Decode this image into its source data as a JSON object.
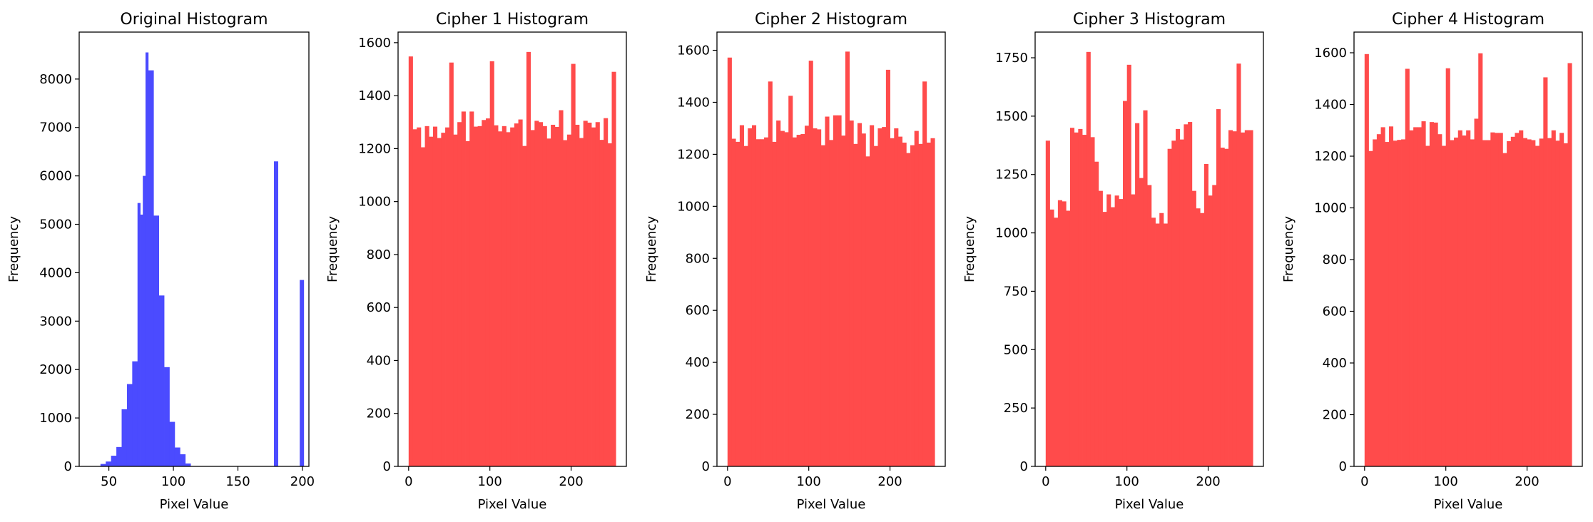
{
  "chart_data": [
    {
      "type": "bar",
      "title": "Original Histogram",
      "xlabel": "Pixel Value",
      "ylabel": "Frequency",
      "xlim": [
        27,
        205
      ],
      "ylim": [
        0,
        8970
      ],
      "xticks": [
        50,
        100,
        150,
        200
      ],
      "yticks": [
        0,
        1000,
        2000,
        3000,
        4000,
        5000,
        6000,
        7000,
        8000
      ],
      "color": "#4b4bff",
      "bins": [
        {
          "x0": 43.5,
          "x1": 47.6,
          "value": 50
        },
        {
          "x0": 47.6,
          "x1": 51.7,
          "value": 100
        },
        {
          "x0": 51.7,
          "x1": 55.8,
          "value": 220
        },
        {
          "x0": 55.8,
          "x1": 59.9,
          "value": 400
        },
        {
          "x0": 59.9,
          "x1": 64.0,
          "value": 1180
        },
        {
          "x0": 64.0,
          "x1": 68.1,
          "value": 1700
        },
        {
          "x0": 68.1,
          "x1": 72.2,
          "value": 2170
        },
        {
          "x0": 72.2,
          "x1": 74.3,
          "value": 5440
        },
        {
          "x0": 74.3,
          "x1": 76.3,
          "value": 5200
        },
        {
          "x0": 76.3,
          "x1": 78.4,
          "value": 6000
        },
        {
          "x0": 78.4,
          "x1": 80.5,
          "value": 8550
        },
        {
          "x0": 80.5,
          "x1": 84.6,
          "value": 8180
        },
        {
          "x0": 84.6,
          "x1": 88.7,
          "value": 5180
        },
        {
          "x0": 88.7,
          "x1": 92.8,
          "value": 3530
        },
        {
          "x0": 92.8,
          "x1": 96.9,
          "value": 2050
        },
        {
          "x0": 96.9,
          "x1": 101.0,
          "value": 920
        },
        {
          "x0": 101.0,
          "x1": 105.1,
          "value": 390
        },
        {
          "x0": 105.1,
          "x1": 109.2,
          "value": 250
        },
        {
          "x0": 109.2,
          "x1": 113.3,
          "value": 60
        },
        {
          "x0": 177.9,
          "x1": 181.0,
          "value": 6300
        },
        {
          "x0": 197.9,
          "x1": 201.0,
          "value": 3850
        }
      ]
    },
    {
      "type": "bar",
      "title": "Cipher 1 Histogram",
      "xlabel": "Pixel Value",
      "ylabel": "Frequency",
      "xlim": [
        -13,
        268
      ],
      "ylim": [
        0,
        1640
      ],
      "xticks": [
        0,
        100,
        200
      ],
      "yticks": [
        0,
        200,
        400,
        600,
        800,
        1000,
        1200,
        1400,
        1600
      ],
      "color": "#ff4b4b",
      "bin_start": 0,
      "bin_end": 255,
      "values": [
        1548,
        1273,
        1280,
        1205,
        1285,
        1245,
        1283,
        1240,
        1260,
        1280,
        1525,
        1253,
        1300,
        1340,
        1228,
        1340,
        1283,
        1285,
        1308,
        1314,
        1530,
        1288,
        1265,
        1285,
        1262,
        1280,
        1295,
        1310,
        1210,
        1565,
        1270,
        1305,
        1300,
        1285,
        1238,
        1290,
        1282,
        1345,
        1232,
        1253,
        1520,
        1290,
        1240,
        1305,
        1298,
        1280,
        1300,
        1233,
        1315,
        1220,
        1490
      ]
    },
    {
      "type": "bar",
      "title": "Cipher 2 Histogram",
      "xlabel": "Pixel Value",
      "ylabel": "Frequency",
      "xlim": [
        -13,
        268
      ],
      "ylim": [
        0,
        1670
      ],
      "xticks": [
        0,
        100,
        200
      ],
      "yticks": [
        0,
        200,
        400,
        600,
        800,
        1000,
        1200,
        1400,
        1600
      ],
      "color": "#ff4b4b",
      "bin_start": 0,
      "bin_end": 255,
      "values": [
        1572,
        1260,
        1248,
        1312,
        1232,
        1300,
        1312,
        1258,
        1258,
        1265,
        1480,
        1248,
        1330,
        1290,
        1285,
        1425,
        1265,
        1275,
        1278,
        1310,
        1560,
        1300,
        1296,
        1235,
        1345,
        1255,
        1350,
        1350,
        1272,
        1595,
        1330,
        1240,
        1320,
        1280,
        1192,
        1312,
        1232,
        1300,
        1305,
        1525,
        1262,
        1300,
        1268,
        1245,
        1205,
        1235,
        1290,
        1240,
        1480,
        1245,
        1262
      ]
    },
    {
      "type": "bar",
      "title": "Cipher 3 Histogram",
      "xlabel": "Pixel Value",
      "ylabel": "Frequency",
      "xlim": [
        -13,
        268
      ],
      "ylim": [
        0,
        1860
      ],
      "xticks": [
        0,
        100,
        200
      ],
      "yticks": [
        0,
        250,
        500,
        750,
        1000,
        1250,
        1500,
        1750
      ],
      "color": "#ff4b4b",
      "bin_start": 0,
      "bin_end": 255,
      "values": [
        1395,
        1100,
        1065,
        1140,
        1135,
        1095,
        1450,
        1430,
        1445,
        1420,
        1775,
        1410,
        1305,
        1180,
        1090,
        1165,
        1110,
        1160,
        1145,
        1565,
        1720,
        1165,
        1470,
        1235,
        1525,
        1205,
        1065,
        1040,
        1085,
        1040,
        1360,
        1395,
        1445,
        1400,
        1465,
        1475,
        1180,
        1105,
        1085,
        1295,
        1160,
        1205,
        1530,
        1365,
        1360,
        1440,
        1435,
        1725,
        1430,
        1440,
        1440
      ]
    },
    {
      "type": "bar",
      "title": "Cipher 4 Histogram",
      "xlabel": "Pixel Value",
      "ylabel": "Frequency",
      "xlim": [
        -13,
        268
      ],
      "ylim": [
        0,
        1680
      ],
      "xticks": [
        0,
        100,
        200
      ],
      "yticks": [
        0,
        200,
        400,
        600,
        800,
        1000,
        1200,
        1400,
        1600
      ],
      "color": "#ff4b4b",
      "bin_start": 0,
      "bin_end": 255,
      "values": [
        1595,
        1220,
        1265,
        1285,
        1312,
        1255,
        1315,
        1260,
        1263,
        1265,
        1538,
        1300,
        1312,
        1312,
        1335,
        1240,
        1332,
        1330,
        1285,
        1240,
        1540,
        1262,
        1272,
        1300,
        1280,
        1300,
        1265,
        1345,
        1598,
        1262,
        1262,
        1292,
        1290,
        1290,
        1212,
        1258,
        1275,
        1290,
        1300,
        1270,
        1265,
        1262,
        1240,
        1268,
        1505,
        1270,
        1300,
        1260,
        1290,
        1250,
        1560
      ]
    }
  ]
}
